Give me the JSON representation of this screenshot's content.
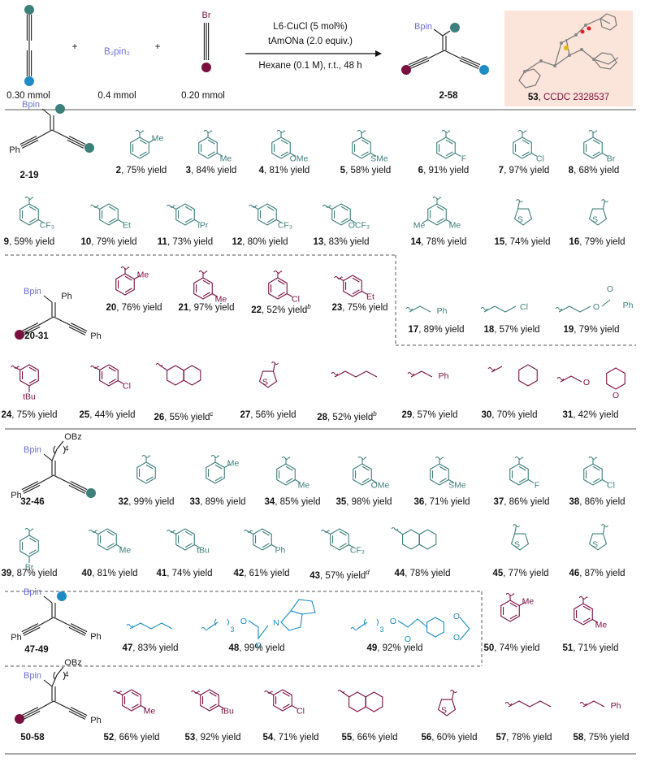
{
  "colors": {
    "teal": "#3d7f7a",
    "maroon": "#7a1040",
    "blue": "#1e8bc3",
    "bpin": "#6b6fd1",
    "ink": "#1a1a1a",
    "xray_bg": "#fbe4d9",
    "ccdc": "#7a1040"
  },
  "scheme": {
    "reagent1_amount": "0.30 mmol",
    "reagent2_label": "B₂pin₂",
    "reagent2_amount": "0.4 mmol",
    "reagent3_amount": "0.20 mmol",
    "reagent3_atom": "Br",
    "plus": "+",
    "cond_catalyst": "L6·CuCl (5 mol%)",
    "cond_base": "tAmONa (2.0 equiv.)",
    "cond_solvent": "Hexane (0.1 M), r.t., 48 h",
    "product_range": "2-58",
    "bpin": "Bpin",
    "xray_number": "53",
    "xray_ccdc": "CCDC 2328537"
  },
  "sections": {
    "s1_range": "2-19",
    "s2_range": "20-31",
    "s3_range": "32-46",
    "s4_range": "47-49",
    "s5_range": "50-58",
    "ph": "Ph",
    "obz": "OBz",
    "sub4": "4"
  },
  "labels": {
    "2": [
      "2",
      ", 75% yield"
    ],
    "3": [
      "3",
      ", 84% yield"
    ],
    "4": [
      "4",
      ", 81% yield"
    ],
    "5": [
      "5",
      ", 58% yield"
    ],
    "6": [
      "6",
      ", 91% yield"
    ],
    "7": [
      "7",
      ", 97% yield"
    ],
    "8": [
      "8",
      ", 68% yield"
    ],
    "9": [
      "9",
      ", 59% yield"
    ],
    "10": [
      "10",
      ", 79% yield"
    ],
    "11": [
      "11",
      ", 73% yield"
    ],
    "12": [
      "12",
      ", 80% yield"
    ],
    "13": [
      "13",
      ", 83% yield"
    ],
    "14": [
      "14",
      ", 78% yield"
    ],
    "15": [
      "15",
      ", 74% yield"
    ],
    "16": [
      "16",
      ", 79% yield"
    ],
    "17": [
      "17",
      ", 89% yield"
    ],
    "18": [
      "18",
      ", 57% yield"
    ],
    "19": [
      "19",
      ", 79% yield"
    ],
    "20": [
      "20",
      ", 76% yield"
    ],
    "21": [
      "21",
      ", 97% yield"
    ],
    "22": [
      "22",
      ", 52% yield",
      "b"
    ],
    "23": [
      "23",
      ", 75% yield"
    ],
    "24": [
      "24",
      ", 75% yield"
    ],
    "25": [
      "25",
      ", 44% yield"
    ],
    "26": [
      "26",
      ", 55% yield",
      "c"
    ],
    "27": [
      "27",
      ", 56% yield"
    ],
    "28": [
      "28",
      ", 52% yield",
      "b"
    ],
    "29": [
      "29",
      ", 57% yield"
    ],
    "30": [
      "30",
      ", 70% yield"
    ],
    "31": [
      "31",
      ", 42% yield"
    ],
    "32": [
      "32",
      ", 99% yield"
    ],
    "33": [
      "33",
      ", 89% yield"
    ],
    "34": [
      "34",
      ", 85% yield"
    ],
    "35": [
      "35",
      ", 98% yield"
    ],
    "36": [
      "36",
      ", 71% yield"
    ],
    "37": [
      "37",
      ", 86% yield"
    ],
    "38": [
      "38",
      ", 86% yield"
    ],
    "39": [
      "39",
      ", 87% yield"
    ],
    "40": [
      "40",
      ", 81% yield"
    ],
    "41": [
      "41",
      ", 74% yield"
    ],
    "42": [
      "42",
      ", 61% yield"
    ],
    "43": [
      "43",
      ", 57% yield",
      "d"
    ],
    "44": [
      "44",
      ", 78% yield"
    ],
    "45": [
      "45",
      ", 77% yield"
    ],
    "46": [
      "46",
      ", 87% yield"
    ],
    "47": [
      "47",
      ", 83% yield"
    ],
    "48": [
      "48",
      ", 99% yield"
    ],
    "49": [
      "49",
      ", 92% yield"
    ],
    "50": [
      "50",
      ", 74% yield"
    ],
    "51": [
      "51",
      ", 71% yield"
    ],
    "52": [
      "52",
      ", 66% yield"
    ],
    "53": [
      "53",
      ", 92% yield"
    ],
    "54": [
      "54",
      ", 71% yield"
    ],
    "55": [
      "55",
      ", 66% yield"
    ],
    "56": [
      "56",
      ", 60% yield"
    ],
    "57": [
      "57",
      ", 78% yield"
    ],
    "58": [
      "58",
      ", 75% yield"
    ]
  },
  "substituents": {
    "me": "Me",
    "ome": "OMe",
    "sme": "SMe",
    "f": "F",
    "cl": "Cl",
    "br": "Br",
    "cf3": "CF₃",
    "et": "Et",
    "ipr": "iPr",
    "ocf3": "OCF₃",
    "tbu": "tBu",
    "s": "S",
    "o": "O",
    "n": "N",
    "ph": "Ph",
    "sub3": "3"
  }
}
